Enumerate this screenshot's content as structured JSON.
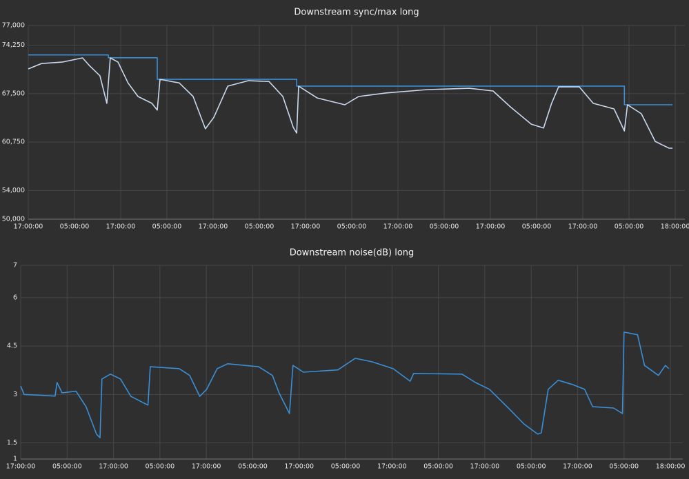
{
  "chart_data": [
    {
      "type": "line",
      "title": "Downstream sync/max long",
      "xlim": [
        0,
        170.5
      ],
      "ylim": [
        50000,
        77000
      ],
      "xticks": [
        {
          "value": 0,
          "label": "17:00:00"
        },
        {
          "value": 12,
          "label": "05:00:00"
        },
        {
          "value": 24,
          "label": "17:00:00"
        },
        {
          "value": 36,
          "label": "05:00:00"
        },
        {
          "value": 48,
          "label": "17:00:00"
        },
        {
          "value": 60,
          "label": "05:00:00"
        },
        {
          "value": 72,
          "label": "17:00:00"
        },
        {
          "value": 84,
          "label": "05:00:00"
        },
        {
          "value": 96,
          "label": "17:00:00"
        },
        {
          "value": 108,
          "label": "05:00:00"
        },
        {
          "value": 120,
          "label": "17:00:00"
        },
        {
          "value": 132,
          "label": "05:00:00"
        },
        {
          "value": 144,
          "label": "17:00:00"
        },
        {
          "value": 156,
          "label": "05:00:00"
        },
        {
          "value": 168,
          "label": "18:00:00"
        }
      ],
      "yticks": [
        {
          "value": 50000,
          "label": "50,000"
        },
        {
          "value": 54000,
          "label": "54,000"
        },
        {
          "value": 60750,
          "label": "60,750"
        },
        {
          "value": 67500,
          "label": "67,500"
        },
        {
          "value": 74250,
          "label": "74,250"
        },
        {
          "value": 77000,
          "label": "77,000"
        }
      ],
      "grid": true,
      "series": [
        {
          "color": "#3a8fd6",
          "x": [
            0,
            20.8,
            20.8,
            33.5,
            33.5,
            69.7,
            69.7,
            154.8,
            154.8,
            167.3
          ],
          "values": [
            72900,
            72900,
            72500,
            72500,
            69500,
            69500,
            68550,
            68550,
            65950,
            65950
          ]
        },
        {
          "color": "#c9d9ee",
          "x": [
            0,
            3.4,
            8.8,
            14.1,
            15.9,
            18.6,
            20.4,
            21.3,
            23.3,
            25.9,
            28.5,
            32.1,
            33.5,
            34.2,
            39.2,
            42.8,
            46.0,
            48.2,
            51.8,
            57.1,
            62.5,
            66.1,
            68.8,
            69.7,
            70.2,
            75.0,
            82.2,
            85.8,
            93.0,
            103.7,
            114.5,
            120.7,
            125.2,
            130.6,
            133.8,
            135.9,
            137.7,
            143.1,
            146.7,
            152.1,
            154.8,
            155.6,
            159.2,
            162.8,
            164.6,
            166.4,
            167.3
          ],
          "values": [
            70950,
            71700,
            71900,
            72480,
            71400,
            70000,
            66150,
            72480,
            71900,
            69000,
            67100,
            66150,
            65200,
            69500,
            69000,
            67100,
            62600,
            64200,
            68540,
            69300,
            69200,
            67100,
            62800,
            62000,
            68540,
            66900,
            65950,
            67100,
            67600,
            68060,
            68250,
            67870,
            65650,
            63250,
            62700,
            66150,
            68440,
            68440,
            66150,
            65370,
            62300,
            65950,
            64700,
            60850,
            60360,
            59900,
            59900
          ]
        }
      ]
    },
    {
      "type": "line",
      "title": "Downstream noise(dB) long",
      "xlim": [
        0,
        171.2
      ],
      "ylim": [
        1,
        7
      ],
      "xticks": [
        {
          "value": 0,
          "label": "17:00:00"
        },
        {
          "value": 12,
          "label": "05:00:00"
        },
        {
          "value": 24,
          "label": "17:00:00"
        },
        {
          "value": 36,
          "label": "05:00:00"
        },
        {
          "value": 48,
          "label": "17:00:00"
        },
        {
          "value": 60,
          "label": "05:00:00"
        },
        {
          "value": 72,
          "label": "17:00:00"
        },
        {
          "value": 84,
          "label": "05:00:00"
        },
        {
          "value": 96,
          "label": "17:00:00"
        },
        {
          "value": 108,
          "label": "05:00:00"
        },
        {
          "value": 120,
          "label": "17:00:00"
        },
        {
          "value": 132,
          "label": "05:00:00"
        },
        {
          "value": 144,
          "label": "17:00:00"
        },
        {
          "value": 156,
          "label": "05:00:00"
        },
        {
          "value": 168,
          "label": "18:00:00"
        }
      ],
      "yticks": [
        1,
        1.5,
        3,
        4.5,
        6,
        7
      ],
      "grid": true,
      "series": [
        {
          "color": "#3a8fd6",
          "x": [
            0,
            0.9,
            8.9,
            9.4,
            10.7,
            14.3,
            16.9,
            19.6,
            20.5,
            21,
            23.2,
            25.8,
            28.5,
            32.9,
            33.5,
            41,
            43.7,
            46.3,
            48.1,
            50.8,
            53.5,
            61.5,
            65.1,
            66.8,
            69.5,
            70.4,
            73.1,
            82,
            86.5,
            90.9,
            96.3,
            100.7,
            101.6,
            114.1,
            117.6,
            121.2,
            126.6,
            130.1,
            133.7,
            134.6,
            136.4,
            139,
            142.6,
            145.8,
            147.9,
            153.3,
            155.6,
            156,
            159.5,
            161.3,
            164.9,
            166.7,
            167.6
          ],
          "values": [
            3.26,
            3.0,
            2.95,
            3.37,
            3.05,
            3.1,
            2.62,
            1.77,
            1.66,
            3.48,
            3.63,
            3.48,
            2.94,
            2.67,
            3.86,
            3.8,
            3.59,
            2.94,
            3.16,
            3.8,
            3.95,
            3.86,
            3.59,
            3.05,
            2.41,
            3.9,
            3.69,
            3.76,
            4.12,
            4.01,
            3.8,
            3.41,
            3.65,
            3.63,
            3.37,
            3.16,
            2.52,
            2.09,
            1.77,
            1.81,
            3.16,
            3.44,
            3.31,
            3.16,
            2.62,
            2.58,
            2.41,
            4.93,
            4.85,
            3.9,
            3.59,
            3.9,
            3.8
          ]
        }
      ]
    }
  ]
}
